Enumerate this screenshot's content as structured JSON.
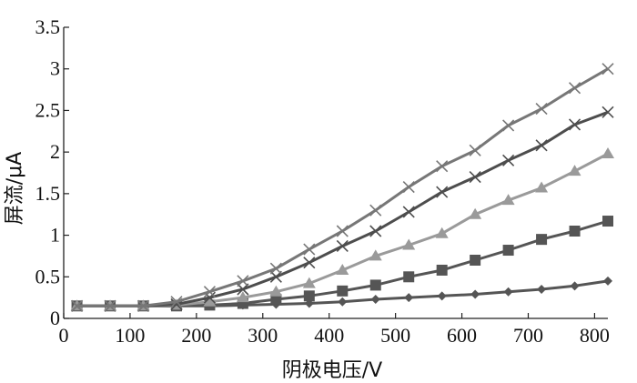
{
  "chart_data": {
    "type": "line",
    "title": "",
    "xlabel": "阴极电压/V",
    "ylabel": "屏流/μA",
    "xlim": [
      0,
      820
    ],
    "ylim": [
      0,
      3.5
    ],
    "xticks": [
      0,
      100,
      200,
      300,
      400,
      500,
      600,
      700,
      800
    ],
    "yticks": [
      0,
      0.5,
      1,
      1.5,
      2,
      2.5,
      3,
      3.5
    ],
    "ytick_labels": [
      "0",
      "0.5",
      "1",
      "1.5",
      "2",
      "2.5",
      "3",
      "3.5"
    ],
    "grid": false,
    "legend": "none",
    "x": [
      20,
      70,
      120,
      170,
      220,
      270,
      320,
      370,
      420,
      470,
      520,
      570,
      620,
      670,
      720,
      770,
      820
    ],
    "series": [
      {
        "marker": "diamond",
        "color": "#555555",
        "values": [
          0.15,
          0.15,
          0.15,
          0.15,
          0.15,
          0.16,
          0.17,
          0.18,
          0.2,
          0.23,
          0.25,
          0.27,
          0.29,
          0.32,
          0.35,
          0.39,
          0.45
        ]
      },
      {
        "marker": "square",
        "color": "#555555",
        "values": [
          0.15,
          0.15,
          0.15,
          0.15,
          0.16,
          0.18,
          0.23,
          0.27,
          0.33,
          0.4,
          0.5,
          0.58,
          0.7,
          0.82,
          0.95,
          1.05,
          1.17
        ]
      },
      {
        "marker": "triangle",
        "color": "#9a9a9a",
        "values": [
          0.15,
          0.15,
          0.15,
          0.16,
          0.2,
          0.25,
          0.32,
          0.42,
          0.58,
          0.75,
          0.88,
          1.02,
          1.25,
          1.42,
          1.57,
          1.77,
          1.98
        ]
      },
      {
        "marker": "x",
        "color": "#4d4d4d",
        "values": [
          0.15,
          0.15,
          0.15,
          0.17,
          0.25,
          0.35,
          0.5,
          0.67,
          0.87,
          1.05,
          1.28,
          1.52,
          1.7,
          1.9,
          2.08,
          2.33,
          2.48
        ]
      },
      {
        "marker": "x",
        "color": "#777777",
        "values": [
          0.15,
          0.15,
          0.15,
          0.2,
          0.32,
          0.45,
          0.6,
          0.83,
          1.05,
          1.3,
          1.58,
          1.83,
          2.02,
          2.32,
          2.52,
          2.77,
          3.0
        ]
      }
    ]
  }
}
